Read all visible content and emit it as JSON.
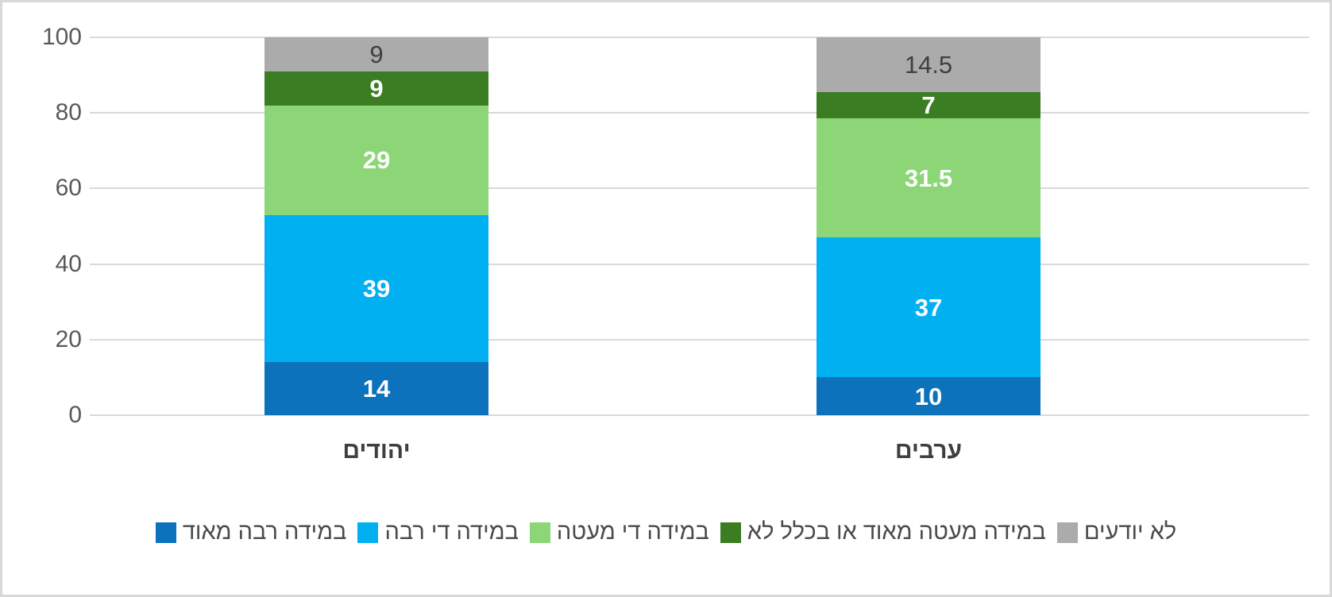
{
  "chart_data": {
    "type": "bar",
    "subtype": "stacked-column",
    "title": "",
    "xlabel": "",
    "ylabel": "",
    "ylim": [
      0,
      100
    ],
    "yticks": [
      0,
      20,
      40,
      60,
      80,
      100
    ],
    "grid": true,
    "legend_position": "bottom",
    "categories": [
      "יהודים",
      "ערבים"
    ],
    "series": [
      {
        "name": "במידה רבה מאוד",
        "color": "#0c72bc",
        "label_color": "light",
        "values": [
          14,
          10
        ]
      },
      {
        "name": "במידה די רבה",
        "color": "#00b0f0",
        "label_color": "light",
        "values": [
          39,
          37
        ]
      },
      {
        "name": "במידה די מעטה",
        "color": "#8cd678",
        "label_color": "light",
        "values": [
          29,
          31.5
        ]
      },
      {
        "name": "במידה מעטה מאוד או בכלל לא",
        "color": "#3b7d23",
        "label_color": "light",
        "values": [
          9,
          7
        ]
      },
      {
        "name": "לא יודעים",
        "color": "#ababab",
        "label_color": "dark",
        "values": [
          9,
          14.5
        ]
      }
    ],
    "colors": {
      "gridline": "#d9d9d9",
      "axis_text": "#595959",
      "category_text": "#3f3f3f",
      "frame_border": "#d8d8d8",
      "background": "#ffffff"
    }
  }
}
